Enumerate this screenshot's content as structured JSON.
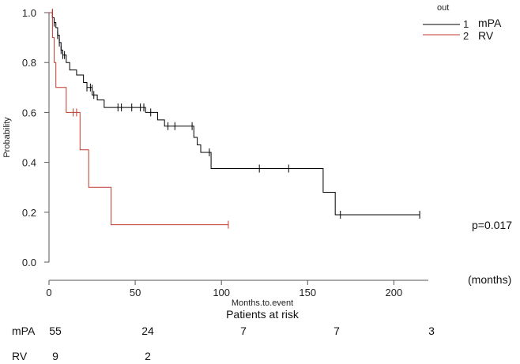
{
  "chart_data": {
    "type": "line",
    "subtype": "kaplan-meier",
    "xlabel": "Months.to.event",
    "ylabel": "Probability",
    "x_unit_label": "(months)",
    "xlim": [
      0,
      220
    ],
    "ylim": [
      0,
      1.0
    ],
    "x_ticks": [
      "0",
      "50",
      "100",
      "150",
      "200"
    ],
    "y_ticks": [
      "0.0",
      "0.2",
      "0.4",
      "0.6",
      "0.8",
      "1.0"
    ],
    "grid": false,
    "legend_title": "out",
    "legend_position": "top-right",
    "annotation": "p=0.017",
    "series": [
      {
        "legend_code": "1",
        "name": "mPA",
        "color": "#000000",
        "steps": [
          [
            0,
            1.0
          ],
          [
            2,
            0.98
          ],
          [
            3,
            0.96
          ],
          [
            4,
            0.94
          ],
          [
            5,
            0.91
          ],
          [
            6,
            0.88
          ],
          [
            7,
            0.85
          ],
          [
            8,
            0.83
          ],
          [
            10,
            0.8
          ],
          [
            12,
            0.77
          ],
          [
            16,
            0.75
          ],
          [
            20,
            0.72
          ],
          [
            22,
            0.7
          ],
          [
            25,
            0.67
          ],
          [
            28,
            0.65
          ],
          [
            32,
            0.62
          ],
          [
            56,
            0.6
          ],
          [
            63,
            0.57
          ],
          [
            67,
            0.545
          ],
          [
            84,
            0.5
          ],
          [
            86,
            0.47
          ],
          [
            88,
            0.44
          ],
          [
            94,
            0.375
          ],
          [
            159,
            0.28
          ],
          [
            166,
            0.19
          ],
          [
            215,
            0.19
          ]
        ],
        "censored": [
          [
            2,
            0.995
          ],
          [
            3,
            0.96
          ],
          [
            5,
            0.91
          ],
          [
            6,
            0.88
          ],
          [
            7,
            0.85
          ],
          [
            8,
            0.83
          ],
          [
            9,
            0.83
          ],
          [
            22,
            0.7
          ],
          [
            24,
            0.7
          ],
          [
            25,
            0.695
          ],
          [
            26,
            0.67
          ],
          [
            40,
            0.62
          ],
          [
            42,
            0.62
          ],
          [
            48,
            0.62
          ],
          [
            53,
            0.62
          ],
          [
            55,
            0.62
          ],
          [
            59,
            0.6
          ],
          [
            69,
            0.545
          ],
          [
            73,
            0.545
          ],
          [
            83,
            0.545
          ],
          [
            93,
            0.44
          ],
          [
            122,
            0.375
          ],
          [
            139,
            0.375
          ],
          [
            169,
            0.19
          ],
          [
            215,
            0.19
          ]
        ]
      },
      {
        "legend_code": "2",
        "name": "RV",
        "color": "#c0392b",
        "steps": [
          [
            0,
            1.0
          ],
          [
            2,
            0.9
          ],
          [
            3,
            0.8
          ],
          [
            4,
            0.7
          ],
          [
            10,
            0.6
          ],
          [
            18,
            0.45
          ],
          [
            23,
            0.3
          ],
          [
            36,
            0.15
          ],
          [
            104,
            0.15
          ]
        ],
        "censored": [
          [
            2,
            1.0
          ],
          [
            14,
            0.6
          ],
          [
            16,
            0.6
          ],
          [
            104,
            0.15
          ]
        ]
      }
    ]
  },
  "risk_table": {
    "title": "Patients at risk",
    "times": [
      0,
      50,
      100,
      150,
      200
    ],
    "rows": [
      {
        "label": "mPA",
        "values": [
          "55",
          "24",
          "7",
          "7",
          "3"
        ]
      },
      {
        "label": "RV",
        "values": [
          "9",
          "2",
          "",
          "",
          ""
        ]
      }
    ]
  }
}
